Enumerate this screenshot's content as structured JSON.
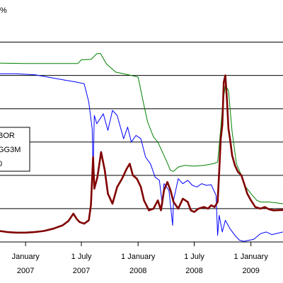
{
  "chart_data": {
    "type": "line",
    "y_unit_label": "%",
    "x_tick_labels": [
      {
        "line1": "January",
        "line2": "2007",
        "date": "2007-01-01"
      },
      {
        "line1": "1 July",
        "line2": "2007",
        "date": "2007-07-01"
      },
      {
        "line1": "1 January",
        "line2": "2008",
        "date": "2008-01-01"
      },
      {
        "line1": "1 July",
        "line2": "2008",
        "date": "2008-07-01"
      },
      {
        "line1": "1 January",
        "line2": "2009",
        "date": "2009-01-01"
      }
    ],
    "xlim": [
      "2006-10-10",
      "2009-04-15"
    ],
    "ylim": [
      0,
      6.5
    ],
    "gridlines_y": [
      1,
      2,
      3,
      4,
      5,
      6
    ],
    "legend_entries": [
      "BOR",
      "GG3M",
      "0"
    ],
    "series": [
      {
        "color": "#008000",
        "style": "thin",
        "points": [
          [
            "2006-10-10",
            5.37
          ],
          [
            "2007-01-01",
            5.36
          ],
          [
            "2007-03-01",
            5.36
          ],
          [
            "2007-05-01",
            5.36
          ],
          [
            "2007-06-20",
            5.36
          ],
          [
            "2007-07-01",
            5.47
          ],
          [
            "2007-08-01",
            5.48
          ],
          [
            "2007-08-20",
            5.65
          ],
          [
            "2007-09-01",
            5.66
          ],
          [
            "2007-09-20",
            5.35
          ],
          [
            "2007-10-20",
            5.1
          ],
          [
            "2007-11-15",
            5.05
          ],
          [
            "2007-12-01",
            5.02
          ],
          [
            "2008-01-01",
            4.95
          ],
          [
            "2008-01-20",
            4.1
          ],
          [
            "2008-02-01",
            3.6
          ],
          [
            "2008-02-20",
            3.15
          ],
          [
            "2008-03-05",
            3.0
          ],
          [
            "2008-03-20",
            2.7
          ],
          [
            "2008-04-01",
            2.45
          ],
          [
            "2008-04-15",
            2.15
          ],
          [
            "2008-04-25",
            2.12
          ],
          [
            "2008-05-10",
            2.25
          ],
          [
            "2008-06-01",
            2.3
          ],
          [
            "2008-07-01",
            2.28
          ],
          [
            "2008-08-01",
            2.3
          ],
          [
            "2008-09-01",
            2.35
          ],
          [
            "2008-09-15",
            2.4
          ],
          [
            "2008-09-25",
            3.4
          ],
          [
            "2008-10-01",
            4.1
          ],
          [
            "2008-10-10",
            4.7
          ],
          [
            "2008-10-20",
            4.55
          ],
          [
            "2008-11-01",
            3.3
          ],
          [
            "2008-11-15",
            2.35
          ],
          [
            "2008-12-01",
            2.0
          ],
          [
            "2008-12-15",
            1.65
          ],
          [
            "2009-01-01",
            1.45
          ],
          [
            "2009-01-20",
            1.25
          ],
          [
            "2009-02-01",
            1.2
          ],
          [
            "2009-03-01",
            1.2
          ],
          [
            "2009-04-15",
            1.15
          ]
        ]
      },
      {
        "color": "#0000ff",
        "style": "thin",
        "points": [
          [
            "2006-10-10",
            5.05
          ],
          [
            "2006-12-01",
            5.05
          ],
          [
            "2007-02-01",
            5.02
          ],
          [
            "2007-04-01",
            4.92
          ],
          [
            "2007-05-15",
            4.85
          ],
          [
            "2007-06-15",
            4.8
          ],
          [
            "2007-07-10",
            4.75
          ],
          [
            "2007-07-25",
            4.2
          ],
          [
            "2007-08-05",
            3.4
          ],
          [
            "2007-08-08",
            2.1
          ],
          [
            "2007-08-12",
            3.8
          ],
          [
            "2007-08-20",
            3.55
          ],
          [
            "2007-09-10",
            3.85
          ],
          [
            "2007-09-25",
            3.35
          ],
          [
            "2007-10-10",
            3.95
          ],
          [
            "2007-10-25",
            3.8
          ],
          [
            "2007-11-15",
            3.1
          ],
          [
            "2007-11-28",
            3.45
          ],
          [
            "2007-12-10",
            3.0
          ],
          [
            "2007-12-25",
            3.2
          ],
          [
            "2008-01-10",
            3.1
          ],
          [
            "2008-01-25",
            2.55
          ],
          [
            "2008-02-10",
            2.35
          ],
          [
            "2008-02-25",
            1.95
          ],
          [
            "2008-03-10",
            1.85
          ],
          [
            "2008-03-20",
            1.1
          ],
          [
            "2008-03-25",
            1.75
          ],
          [
            "2008-04-10",
            1.55
          ],
          [
            "2008-04-22",
            0.5
          ],
          [
            "2008-04-25",
            1.25
          ],
          [
            "2008-05-10",
            1.9
          ],
          [
            "2008-05-25",
            1.75
          ],
          [
            "2008-06-10",
            1.85
          ],
          [
            "2008-06-25",
            1.7
          ],
          [
            "2008-07-10",
            1.65
          ],
          [
            "2008-07-25",
            1.75
          ],
          [
            "2008-08-10",
            1.7
          ],
          [
            "2008-08-25",
            1.72
          ],
          [
            "2008-09-10",
            1.4
          ],
          [
            "2008-09-15",
            0.2
          ],
          [
            "2008-09-20",
            0.8
          ],
          [
            "2008-09-30",
            0.3
          ],
          [
            "2008-10-10",
            0.65
          ],
          [
            "2008-10-25",
            0.4
          ],
          [
            "2008-11-10",
            0.2
          ],
          [
            "2008-11-25",
            0.05
          ],
          [
            "2008-12-10",
            0.02
          ],
          [
            "2008-12-25",
            0.05
          ],
          [
            "2009-01-10",
            0.08
          ],
          [
            "2009-02-01",
            0.25
          ],
          [
            "2009-02-20",
            0.3
          ],
          [
            "2009-03-10",
            0.22
          ],
          [
            "2009-04-15",
            0.3
          ]
        ]
      },
      {
        "color": "#800000",
        "style": "thick",
        "points": [
          [
            "2006-10-10",
            0.33
          ],
          [
            "2006-11-01",
            0.3
          ],
          [
            "2006-12-01",
            0.28
          ],
          [
            "2007-01-01",
            0.28
          ],
          [
            "2007-02-01",
            0.3
          ],
          [
            "2007-03-01",
            0.33
          ],
          [
            "2007-04-01",
            0.4
          ],
          [
            "2007-05-01",
            0.5
          ],
          [
            "2007-05-20",
            0.63
          ],
          [
            "2007-06-05",
            0.85
          ],
          [
            "2007-06-15",
            0.7
          ],
          [
            "2007-06-25",
            0.6
          ],
          [
            "2007-07-10",
            0.55
          ],
          [
            "2007-07-25",
            0.65
          ],
          [
            "2007-08-01",
            1.1
          ],
          [
            "2007-08-08",
            2.55
          ],
          [
            "2007-08-12",
            1.6
          ],
          [
            "2007-08-22",
            1.95
          ],
          [
            "2007-09-03",
            2.7
          ],
          [
            "2007-09-15",
            2.15
          ],
          [
            "2007-09-25",
            1.45
          ],
          [
            "2007-10-10",
            1.15
          ],
          [
            "2007-10-25",
            1.65
          ],
          [
            "2007-11-10",
            1.9
          ],
          [
            "2007-11-25",
            2.2
          ],
          [
            "2007-12-05",
            2.35
          ],
          [
            "2007-12-15",
            2.0
          ],
          [
            "2007-12-28",
            1.9
          ],
          [
            "2008-01-10",
            1.65
          ],
          [
            "2008-01-20",
            1.25
          ],
          [
            "2008-02-05",
            0.95
          ],
          [
            "2008-02-20",
            1.0
          ],
          [
            "2008-03-05",
            1.25
          ],
          [
            "2008-03-15",
            0.95
          ],
          [
            "2008-03-25",
            1.55
          ],
          [
            "2008-04-05",
            1.8
          ],
          [
            "2008-04-15",
            1.55
          ],
          [
            "2008-04-25",
            1.2
          ],
          [
            "2008-05-10",
            1.0
          ],
          [
            "2008-05-25",
            1.3
          ],
          [
            "2008-06-10",
            1.2
          ],
          [
            "2008-06-20",
            0.95
          ],
          [
            "2008-07-01",
            0.9
          ],
          [
            "2008-07-15",
            1.0
          ],
          [
            "2008-08-01",
            1.05
          ],
          [
            "2008-08-15",
            1.0
          ],
          [
            "2008-08-25",
            1.1
          ],
          [
            "2008-09-05",
            1.05
          ],
          [
            "2008-09-15",
            1.2
          ],
          [
            "2008-09-20",
            2.1
          ],
          [
            "2008-09-25",
            3.1
          ],
          [
            "2008-09-30",
            3.5
          ],
          [
            "2008-10-05",
            4.8
          ],
          [
            "2008-10-10",
            5.0
          ],
          [
            "2008-10-15",
            4.3
          ],
          [
            "2008-10-20",
            3.4
          ],
          [
            "2008-10-25",
            3.1
          ],
          [
            "2008-11-01",
            2.6
          ],
          [
            "2008-11-10",
            2.3
          ],
          [
            "2008-11-20",
            2.1
          ],
          [
            "2008-12-01",
            2.0
          ],
          [
            "2008-12-10",
            1.75
          ],
          [
            "2008-12-20",
            1.45
          ],
          [
            "2009-01-01",
            1.25
          ],
          [
            "2009-01-15",
            1.05
          ],
          [
            "2009-02-01",
            1.0
          ],
          [
            "2009-02-15",
            1.05
          ],
          [
            "2009-03-01",
            0.98
          ],
          [
            "2009-03-15",
            0.95
          ],
          [
            "2009-04-15",
            0.96
          ]
        ]
      }
    ]
  }
}
